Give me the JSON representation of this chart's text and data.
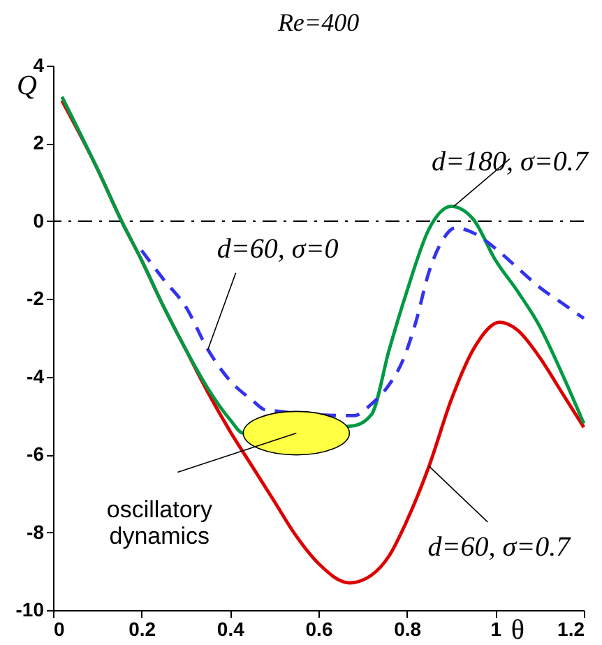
{
  "chart_data": {
    "type": "line",
    "title": "Re=400",
    "xlabel": "θ",
    "ylabel": "Q",
    "xlim": [
      0,
      1.2
    ],
    "xticks": [
      0,
      0.2,
      0.4,
      0.6,
      0.8,
      1,
      1.2
    ],
    "ylim": [
      -10,
      4
    ],
    "yticks": [
      -10,
      -8,
      -6,
      -4,
      -2,
      0,
      2,
      4
    ],
    "grid": false,
    "marker": "none",
    "ref_lines": [
      {
        "axis": "y",
        "value": 0,
        "color": "#000000",
        "line_style": "dashdot"
      }
    ],
    "series": [
      {
        "color": "#dd0000",
        "line_style": "solid",
        "x": [
          0.02,
          0.1,
          0.155,
          0.2,
          0.25,
          0.3,
          0.35,
          0.4,
          0.45,
          0.5,
          0.55,
          0.6,
          0.67,
          0.72,
          0.76,
          0.8,
          0.85,
          0.9,
          0.95,
          1.01,
          1.05,
          1.1,
          1.15,
          1.2
        ],
        "values": [
          3.1,
          1.35,
          0,
          -1.0,
          -2.2,
          -3.3,
          -4.4,
          -5.4,
          -6.3,
          -7.2,
          -8.1,
          -8.8,
          -9.3,
          -9.1,
          -8.6,
          -7.7,
          -6.3,
          -4.6,
          -3.3,
          -2.6,
          -2.8,
          -3.5,
          -4.4,
          -5.3
        ]
      },
      {
        "color": "#009944",
        "line_style": "solid",
        "x": [
          0.02,
          0.1,
          0.155,
          0.2,
          0.25,
          0.3,
          0.35,
          0.4,
          0.43,
          0.68,
          0.72,
          0.76,
          0.8,
          0.85,
          0.9,
          0.95,
          1.0,
          1.05,
          1.1,
          1.15,
          1.2
        ],
        "values": [
          3.2,
          1.35,
          0,
          -1.0,
          -2.2,
          -3.3,
          -4.3,
          -5.1,
          -5.45,
          -5.26,
          -4.97,
          -3.3,
          -1.8,
          -0.2,
          0.38,
          0.05,
          -1.0,
          -1.8,
          -2.7,
          -3.9,
          -5.2
        ]
      },
      {
        "color": "#3333ee",
        "line_style": "dashed",
        "x": [
          0.2,
          0.25,
          0.3,
          0.35,
          0.4,
          0.45,
          0.48,
          0.68,
          0.72,
          0.76,
          0.79,
          0.82,
          0.85,
          0.88,
          0.91,
          0.95,
          1.0,
          1.05,
          1.1,
          1.15,
          1.2
        ],
        "values": [
          -0.75,
          -1.5,
          -2.2,
          -3.3,
          -4.1,
          -4.6,
          -4.85,
          -5.0,
          -4.7,
          -4.2,
          -3.6,
          -2.6,
          -1.3,
          -0.5,
          -0.17,
          -0.3,
          -0.7,
          -1.2,
          -1.7,
          -2.1,
          -2.5
        ]
      }
    ],
    "annotations": [
      {
        "text": "d=60, σ=0",
        "x": 0.35,
        "y": -3.3
      },
      {
        "text": "d=180, σ=0.7",
        "x": 0.906,
        "y": 0.38
      },
      {
        "text": "d=60, σ=0.7",
        "x": 0.85,
        "y": -6.3
      },
      {
        "text": "oscillatory\ndynamics",
        "x": 0.55,
        "y": -5.45
      }
    ]
  }
}
